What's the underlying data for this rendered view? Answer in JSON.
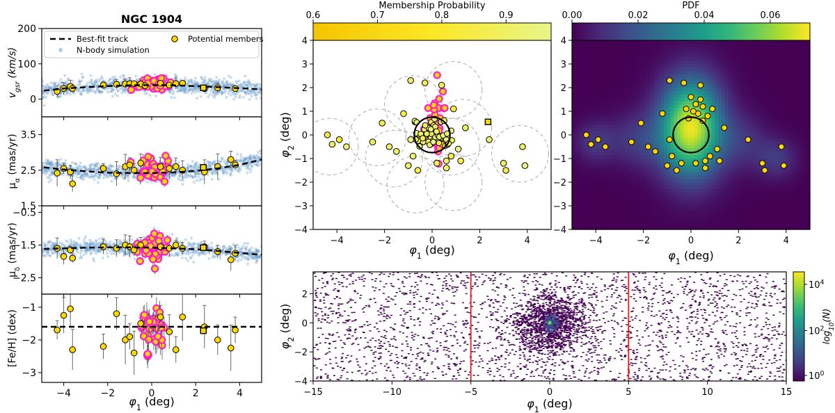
{
  "figure_title": "NGC 1904",
  "colors": {
    "member_fill": "#FFD700",
    "highlight_magenta": "#FF1FC8",
    "nbody_blue": "#6A9FCC",
    "track": "#000000",
    "red_line": "#E41A1C",
    "circle_dashed": "#AAAAAA",
    "viridis": [
      "#440154",
      "#482878",
      "#3E4A89",
      "#31688E",
      "#26828E",
      "#1F9E89",
      "#35B779",
      "#6DCD59",
      "#B4DE2C",
      "#FDE725"
    ],
    "membership_cmap": [
      "#F5C400",
      "#FDE725",
      "#E8F58A"
    ]
  },
  "chart_data": [
    {
      "id": "vgsr",
      "type": "scatter",
      "xlabel": "",
      "ylabel": "v_gsr (km/s)",
      "xlim": [
        -5,
        5
      ],
      "ylim": [
        -50,
        200
      ],
      "yticks": [
        0,
        100,
        200
      ],
      "legend": {
        "placement": "top",
        "entries": [
          "Best-fit track",
          "N-body simulation",
          "Potential members"
        ]
      },
      "track": {
        "x": [
          -4.9,
          -4,
          -3,
          -2,
          -1,
          0,
          1,
          2,
          3,
          4,
          5
        ],
        "y": [
          24,
          30,
          34,
          37,
          39,
          40,
          39,
          37,
          34,
          31,
          28
        ]
      },
      "nbody": {
        "x_range": [
          -5,
          5
        ],
        "center_y": 37,
        "spread": 12,
        "count": 900
      },
      "members": {
        "x": [
          -4.3,
          -4.0,
          -3.7,
          -3.6,
          -2.2,
          -1.6,
          -1.2,
          -1.0,
          -0.8,
          -0.5,
          -0.3,
          0.4,
          0.8,
          1.1,
          1.4,
          2.4,
          3.0,
          3.8
        ],
        "y": [
          22,
          30,
          36,
          30,
          40,
          42,
          43,
          44,
          44,
          43,
          38,
          45,
          40,
          44,
          45,
          30,
          32,
          30
        ]
      },
      "highlight": {
        "center_x": 0.1,
        "center_y": 40,
        "spread_x": 0.35,
        "spread_y": 9,
        "count": 45
      },
      "square": {
        "x": 2.35,
        "y": 32
      },
      "errorbar_size": 12
    },
    {
      "id": "pmra",
      "type": "scatter",
      "xlabel": "",
      "ylabel": "μ_α (mas/yr)",
      "xlim": [
        -5,
        5
      ],
      "ylim": [
        1.5,
        4.0
      ],
      "yticks": [
        1.5,
        2.5,
        3.5
      ],
      "track": {
        "x": [
          -4.9,
          -4,
          -3,
          -2,
          -1,
          0,
          1,
          2,
          3,
          4,
          5
        ],
        "y": [
          2.58,
          2.52,
          2.47,
          2.43,
          2.42,
          2.42,
          2.44,
          2.48,
          2.55,
          2.65,
          2.8
        ]
      },
      "nbody": {
        "x_range": [
          -5,
          5
        ],
        "center_y": 2.5,
        "spread": 0.12,
        "count": 900
      },
      "members": {
        "x": [
          -4.3,
          -4.0,
          -3.7,
          -3.6,
          -2.2,
          -1.6,
          -1.2,
          -1.0,
          -0.8,
          -0.5,
          0.4,
          0.8,
          1.1,
          1.4,
          2.4,
          3.0,
          3.6,
          3.8
        ],
        "y": [
          2.42,
          2.55,
          2.45,
          2.12,
          2.55,
          2.4,
          2.6,
          2.65,
          2.5,
          2.7,
          2.6,
          2.55,
          2.6,
          2.5,
          2.45,
          2.6,
          2.8,
          2.65
        ]
      },
      "highlight": {
        "center_x": 0.1,
        "center_y": 2.5,
        "spread_x": 0.35,
        "spread_y": 0.18,
        "count": 45
      },
      "square": {
        "x": 2.35,
        "y": 2.58
      },
      "errorbar_size": 0.25
    },
    {
      "id": "pmdec",
      "type": "scatter",
      "xlabel": "",
      "ylabel": "μ_δ (mas/yr)",
      "xlim": [
        -5,
        5
      ],
      "ylim": [
        -3.0,
        -0.3
      ],
      "yticks": [
        -0.5,
        -1.5,
        -2.5
      ],
      "track": {
        "x": [
          -4.9,
          -4,
          -3,
          -2,
          -1,
          0,
          1,
          2,
          3,
          4,
          5
        ],
        "y": [
          -1.62,
          -1.6,
          -1.58,
          -1.57,
          -1.57,
          -1.58,
          -1.6,
          -1.63,
          -1.68,
          -1.74,
          -1.8
        ]
      },
      "nbody": {
        "x_range": [
          -5,
          5
        ],
        "center_y": -1.6,
        "spread": 0.12,
        "count": 900
      },
      "members": {
        "x": [
          -4.3,
          -4.0,
          -3.7,
          -3.6,
          -2.2,
          -1.6,
          -1.2,
          -1.0,
          -0.8,
          -0.5,
          0.4,
          0.8,
          1.1,
          1.4,
          2.4,
          3.0,
          3.6,
          3.8
        ],
        "y": [
          -1.6,
          -1.85,
          -1.65,
          -1.9,
          -1.55,
          -1.6,
          -1.5,
          -1.55,
          -1.65,
          -1.5,
          -1.55,
          -1.6,
          -1.5,
          -1.6,
          -1.55,
          -1.7,
          -1.95,
          -1.75
        ]
      },
      "highlight": {
        "center_x": 0.1,
        "center_y": -1.6,
        "spread_x": 0.35,
        "spread_y": 0.22,
        "count": 45
      },
      "square": {
        "x": 2.35,
        "y": -1.58
      },
      "errorbar_size": 0.22
    },
    {
      "id": "feh",
      "type": "scatter",
      "xlabel": "φ1 (deg)",
      "ylabel": "[Fe/H] (dex)",
      "xlim": [
        -5,
        5
      ],
      "ylim": [
        -3.3,
        -0.6
      ],
      "yticks": [
        -1,
        -2,
        -3
      ],
      "xticks": [
        -4,
        -2,
        0,
        2,
        4
      ],
      "track": {
        "x": [
          -5,
          5
        ],
        "y": [
          -1.6,
          -1.6
        ]
      },
      "members": {
        "x": [
          -4.3,
          -4.0,
          -3.7,
          -3.6,
          -2.2,
          -1.6,
          -1.2,
          -1.0,
          -0.8,
          -0.5,
          0.4,
          0.8,
          1.1,
          1.4,
          2.4,
          3.0,
          3.6,
          3.8
        ],
        "y": [
          -1.7,
          -1.25,
          -1.05,
          -2.3,
          -2.2,
          -1.2,
          -2.0,
          -1.9,
          -2.4,
          -1.5,
          -1.3,
          -1.75,
          -2.3,
          -1.3,
          -1.6,
          -2.0,
          -2.25,
          -1.7
        ]
      },
      "highlight": {
        "center_x": 0.1,
        "center_y": -1.75,
        "spread_x": 0.35,
        "spread_y": 0.35,
        "count": 45
      },
      "square": {
        "x": 2.35,
        "y": -1.72
      },
      "errorbar_size": 0.5
    },
    {
      "id": "sky",
      "type": "scatter",
      "xlabel": "φ1 (deg)",
      "ylabel": "φ2 (deg)",
      "xlim": [
        -5,
        5
      ],
      "ylim": [
        -4,
        4
      ],
      "xticks": [
        -4,
        -2,
        0,
        2,
        4
      ],
      "yticks": [
        -4,
        -3,
        -2,
        -1,
        0,
        1,
        2,
        3,
        4
      ],
      "colorbar": {
        "label": "Membership Probability",
        "ticks": [
          0.6,
          0.7,
          0.8,
          0.9
        ],
        "range": [
          0.6,
          0.97
        ]
      },
      "cluster_circle": {
        "x": 0,
        "y": 0,
        "r": 0.75
      },
      "dashed_circles": [
        {
          "x": -4.3,
          "y": -0.5,
          "r": 1.2
        },
        {
          "x": -2.3,
          "y": -0.1,
          "r": 1.2
        },
        {
          "x": -1.6,
          "y": -1.0,
          "r": 1.2
        },
        {
          "x": -0.8,
          "y": 1.3,
          "r": 1.2
        },
        {
          "x": 0.9,
          "y": 1.9,
          "r": 1.2
        },
        {
          "x": 1.3,
          "y": 0.3,
          "r": 1.2
        },
        {
          "x": 0.8,
          "y": -0.5,
          "r": 1.2
        },
        {
          "x": -0.7,
          "y": -2.1,
          "r": 1.2
        },
        {
          "x": 0.9,
          "y": -2.0,
          "r": 1.2
        },
        {
          "x": 3.7,
          "y": -0.8,
          "r": 1.2
        }
      ],
      "members": {
        "x": [
          -4.4,
          -4.2,
          -3.9,
          -3.6,
          -2.5,
          -2.1,
          -1.8,
          -1.2,
          -0.9,
          -0.8,
          -0.6,
          -1.0,
          -1.5,
          0.4,
          0.6,
          0.8,
          1.1,
          1.4,
          0.9,
          0.6,
          -0.3,
          0.5,
          1.2,
          2.4,
          3.0,
          3.1,
          3.8,
          3.9,
          -0.9,
          0.2
        ],
        "y": [
          0.0,
          -0.4,
          -0.2,
          -0.5,
          -0.3,
          0.5,
          -0.5,
          0.9,
          -0.2,
          -0.9,
          -1.5,
          -1.3,
          -0.7,
          2.1,
          -1.4,
          -0.9,
          -0.6,
          0.3,
          1.1,
          -1.1,
          2.2,
          0.6,
          -1.1,
          -0.2,
          -1.2,
          -1.5,
          -0.5,
          -1.3,
          2.3,
          -1.2
        ]
      },
      "member_probs": [
        0.85,
        0.9,
        0.8,
        0.95,
        0.9,
        0.85,
        0.9,
        0.85,
        0.95,
        0.9,
        0.85,
        0.9,
        0.92,
        0.88,
        0.9,
        0.85,
        0.95,
        0.9,
        0.85,
        0.9,
        0.85,
        0.9,
        0.85,
        0.92,
        0.9,
        0.85,
        0.9,
        0.95,
        0.88,
        0.9
      ],
      "core": {
        "x": 0,
        "y": 0,
        "spread": 0.35,
        "count": 55
      },
      "highlight": {
        "center_x": 0.1,
        "center_y": 0.6,
        "spread_x": 0.25,
        "spread_y": 1.0,
        "count": 30
      },
      "square": {
        "x": 2.35,
        "y": 0.55
      }
    },
    {
      "id": "pdf",
      "type": "heatmap",
      "xlabel": "φ1 (deg)",
      "ylabel": "",
      "xlim": [
        -5,
        5
      ],
      "ylim": [
        -4,
        4
      ],
      "xticks": [
        -4,
        -2,
        0,
        2,
        4
      ],
      "yticks": [
        -4,
        -3,
        -2,
        -1,
        0,
        1,
        2,
        3,
        4
      ],
      "colorbar": {
        "label": "PDF",
        "ticks": [
          0.0,
          0.02,
          0.04,
          0.06
        ],
        "range": [
          0,
          0.072
        ]
      },
      "cluster_circle": {
        "x": 0,
        "y": 0,
        "r": 0.75
      },
      "kernels": [
        {
          "x": 0,
          "y": 0.3,
          "sx": 0.9,
          "sy": 1.4,
          "w": 0.07
        },
        {
          "x": -4.0,
          "y": -0.3,
          "sx": 0.6,
          "sy": 0.6,
          "w": 0.012
        },
        {
          "x": -2.2,
          "y": -0.2,
          "sx": 0.8,
          "sy": 0.8,
          "w": 0.012
        },
        {
          "x": 2.2,
          "y": -0.3,
          "sx": 0.7,
          "sy": 0.8,
          "w": 0.01
        },
        {
          "x": 3.6,
          "y": -1.0,
          "sx": 0.6,
          "sy": 0.6,
          "w": 0.012
        }
      ],
      "members": {
        "x": [
          -4.4,
          -4.2,
          -3.9,
          -3.6,
          -2.5,
          -2.1,
          -1.8,
          -1.2,
          -0.9,
          -0.8,
          -0.6,
          -1.0,
          -1.5,
          0.4,
          0.6,
          0.8,
          1.1,
          1.4,
          0.9,
          0.6,
          -0.3,
          0.5,
          1.2,
          2.4,
          3.0,
          3.1,
          3.8,
          3.9,
          -0.9,
          0.2,
          0.0,
          0.2,
          -0.2,
          0.3,
          0.1,
          -0.1,
          0.4,
          0.5,
          0.7,
          -0.4
        ],
        "y": [
          0.0,
          -0.4,
          -0.2,
          -0.5,
          -0.3,
          0.5,
          -0.5,
          0.9,
          -0.2,
          -0.9,
          -1.5,
          -1.3,
          -0.7,
          2.1,
          -1.4,
          -0.9,
          -0.6,
          0.3,
          1.1,
          -1.1,
          2.2,
          0.6,
          -1.1,
          -0.2,
          -1.2,
          -1.5,
          -0.5,
          -1.3,
          2.3,
          -1.2,
          1.6,
          1.3,
          1.1,
          0.9,
          1.0,
          0.7,
          1.5,
          1.2,
          0.8,
          -1.2
        ]
      }
    },
    {
      "id": "density",
      "type": "heatmap",
      "xlabel": "φ1 (deg)",
      "ylabel": "φ2 (deg)",
      "xlim": [
        -15,
        15
      ],
      "ylim": [
        -4,
        3.5
      ],
      "xticks": [
        -15,
        -10,
        -5,
        0,
        5,
        10,
        15
      ],
      "yticks": [
        -4,
        -2,
        0,
        2
      ],
      "colorbar": {
        "label": "log10(N)",
        "ticks": [
          "10^0",
          "10^2",
          "10^4"
        ]
      },
      "vlines": [
        -5,
        5
      ],
      "field_points": 2400,
      "cluster_points": 1400
    }
  ]
}
